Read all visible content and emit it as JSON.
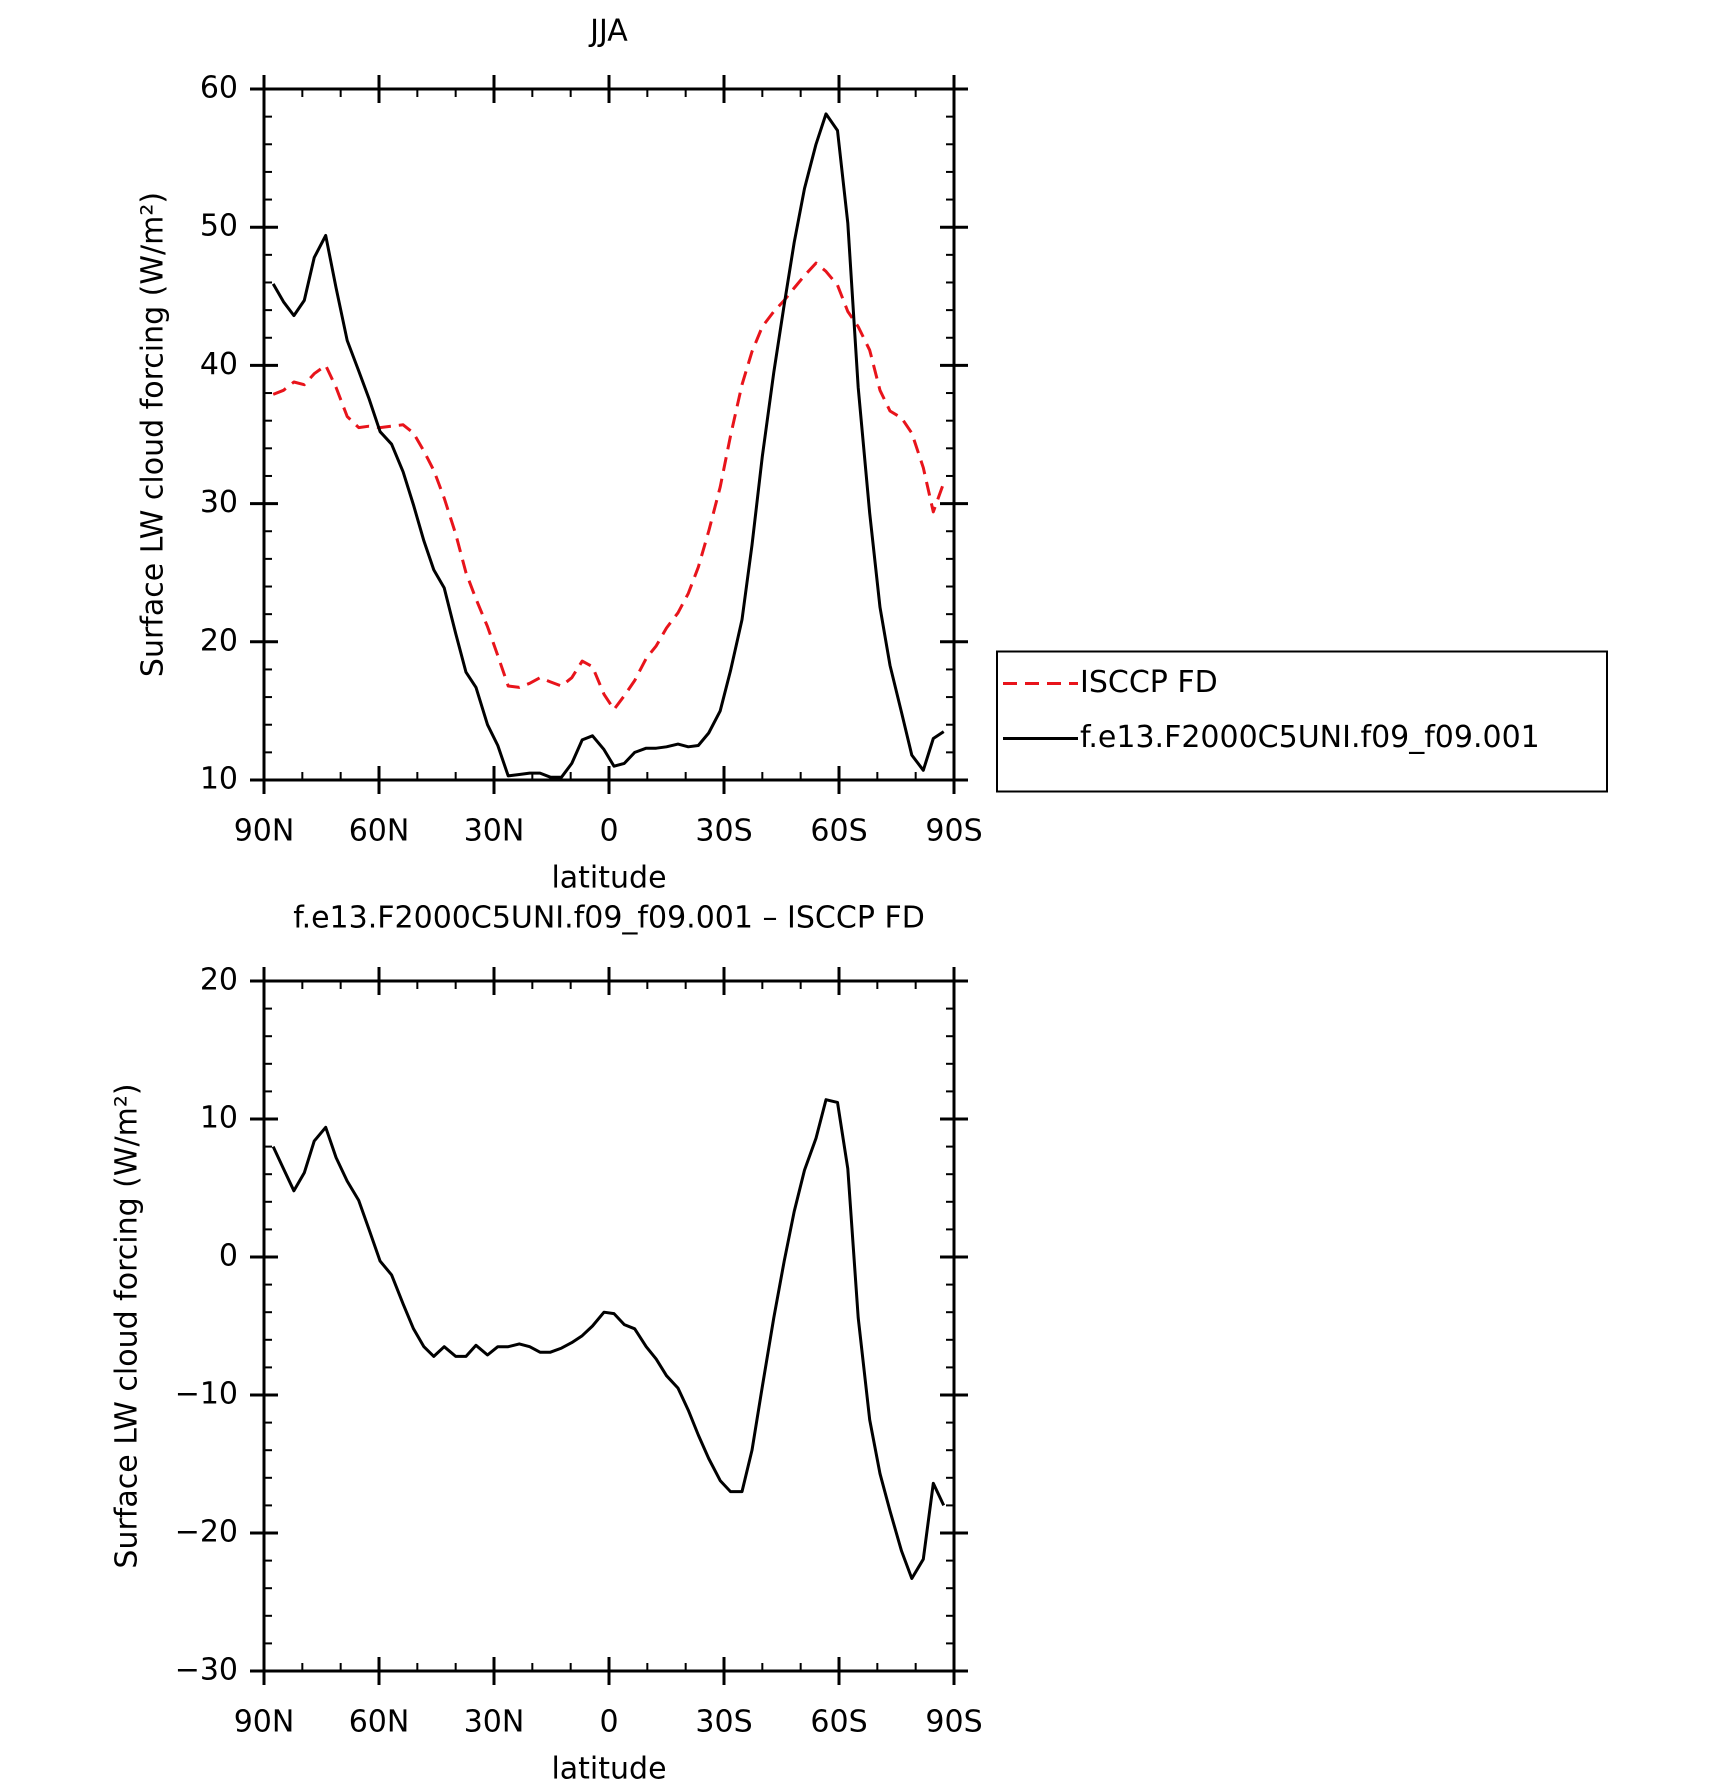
{
  "chart_data": [
    {
      "type": "line",
      "title": "JJA",
      "xlabel": "latitude",
      "ylabel": "Surface LW cloud forcing (W/m²)",
      "x": [
        87.6,
        84.9,
        82.2,
        79.5,
        76.9,
        73.9,
        71.2,
        68.3,
        65.3,
        62.6,
        59.7,
        56.7,
        53.7,
        51.0,
        48.3,
        45.7,
        43.0,
        40.0,
        37.3,
        34.7,
        31.7,
        29.0,
        26.3,
        23.4,
        20.7,
        18.0,
        15.3,
        12.4,
        9.7,
        7.0,
        4.3,
        1.3,
        -1.3,
        -4.0,
        -6.7,
        -9.7,
        -12.3,
        -15.0,
        -18.0,
        -20.7,
        -23.3,
        -26.0,
        -29.0,
        -31.7,
        -34.7,
        -37.3,
        -40.0,
        -43.0,
        -45.7,
        -48.3,
        -51.0,
        -54.0,
        -56.6,
        -59.6,
        -62.3,
        -65.0,
        -68.0,
        -70.7,
        -73.3,
        -76.3,
        -79.0,
        -82.0,
        -84.6,
        -87.3
      ],
      "series": [
        {
          "name": "ISCCP FD",
          "color": "#e8141b",
          "linestyle": "dashed",
          "values": [
            37.9,
            38.2,
            38.8,
            38.6,
            39.4,
            40.0,
            38.4,
            36.3,
            35.5,
            35.6,
            35.5,
            35.6,
            35.7,
            35.1,
            33.8,
            32.4,
            30.4,
            27.8,
            25.0,
            23.1,
            21.1,
            19.0,
            16.8,
            16.7,
            17.0,
            17.4,
            17.1,
            16.8,
            17.4,
            18.6,
            18.2,
            16.2,
            15.1,
            16.1,
            17.2,
            18.8,
            19.7,
            21.0,
            22.1,
            23.5,
            25.4,
            28.0,
            31.2,
            34.9,
            38.6,
            41.0,
            42.8,
            43.9,
            44.7,
            45.6,
            46.5,
            47.4,
            46.8,
            45.8,
            43.9,
            42.8,
            41.1,
            38.2,
            36.7,
            36.2,
            35.1,
            32.6,
            29.4,
            31.5
          ]
        },
        {
          "name": "f.e13.F2000C5UNI.f09_f09.001",
          "color": "#000000",
          "linestyle": "solid",
          "values": [
            45.9,
            44.6,
            43.6,
            44.7,
            47.8,
            49.4,
            45.6,
            41.8,
            39.6,
            37.6,
            35.2,
            34.3,
            32.3,
            29.9,
            27.3,
            25.2,
            23.9,
            20.6,
            17.8,
            16.7,
            14.0,
            12.5,
            10.3,
            10.4,
            10.5,
            10.5,
            10.2,
            10.2,
            11.2,
            12.9,
            13.2,
            12.2,
            11.0,
            11.2,
            12.0,
            12.3,
            12.3,
            12.4,
            12.6,
            12.4,
            12.5,
            13.4,
            15.0,
            17.9,
            21.6,
            27.0,
            33.4,
            39.5,
            44.4,
            48.9,
            52.8,
            56.0,
            58.2,
            57.0,
            50.3,
            38.4,
            29.3,
            22.5,
            18.3,
            14.9,
            11.8,
            10.7,
            13.0,
            13.5
          ]
        }
      ],
      "xlim": [
        90,
        -90
      ],
      "xticks": [
        {
          "value": 90,
          "label": "90N"
        },
        {
          "value": 60,
          "label": "60N"
        },
        {
          "value": 30,
          "label": "30N"
        },
        0,
        {
          "value": -30,
          "label": "30S"
        },
        {
          "value": -60,
          "label": "60S"
        },
        {
          "value": -90,
          "label": "90S"
        }
      ],
      "ylim": [
        10,
        60
      ],
      "yticks": [
        10,
        20,
        30,
        40,
        50,
        60
      ],
      "legend": "right"
    },
    {
      "type": "line",
      "title": "f.e13.F2000C5UNI.f09_f09.001 – ISCCP FD",
      "xlabel": "latitude",
      "ylabel": "Surface LW cloud forcing (W/m²)",
      "x": [
        87.6,
        84.9,
        82.2,
        79.5,
        76.9,
        73.9,
        71.2,
        68.3,
        65.3,
        62.6,
        59.7,
        56.7,
        53.7,
        51.0,
        48.3,
        45.7,
        43.0,
        40.0,
        37.3,
        34.7,
        31.7,
        29.0,
        26.3,
        23.4,
        20.7,
        18.0,
        15.3,
        12.4,
        9.7,
        7.0,
        4.3,
        1.3,
        -1.3,
        -4.0,
        -6.7,
        -9.7,
        -12.3,
        -15.0,
        -18.0,
        -20.7,
        -23.3,
        -26.0,
        -29.0,
        -31.7,
        -34.7,
        -37.3,
        -40.0,
        -43.0,
        -45.7,
        -48.3,
        -51.0,
        -54.0,
        -56.6,
        -59.6,
        -62.3,
        -65.0,
        -68.0,
        -70.7,
        -73.3,
        -76.3,
        -79.0,
        -82.0,
        -84.6,
        -87.3
      ],
      "color": "#000000",
      "values": [
        8.0,
        6.4,
        4.8,
        6.1,
        8.4,
        9.4,
        7.2,
        5.5,
        4.1,
        2.0,
        -0.3,
        -1.3,
        -3.4,
        -5.2,
        -6.5,
        -7.2,
        -6.5,
        -7.2,
        -7.2,
        -6.4,
        -7.1,
        -6.5,
        -6.5,
        -6.3,
        -6.5,
        -6.9,
        -6.9,
        -6.6,
        -6.2,
        -5.7,
        -5.0,
        -4.0,
        -4.1,
        -4.9,
        -5.2,
        -6.5,
        -7.4,
        -8.6,
        -9.5,
        -11.1,
        -12.9,
        -14.6,
        -16.2,
        -17.0,
        -17.0,
        -14.0,
        -9.4,
        -4.4,
        -0.3,
        3.3,
        6.3,
        8.6,
        11.4,
        11.2,
        6.4,
        -4.4,
        -11.8,
        -15.7,
        -18.4,
        -21.3,
        -23.3,
        -21.9,
        -16.4,
        -18.0
      ],
      "xlim": [
        90,
        -90
      ],
      "xticks": [
        {
          "value": 90,
          "label": "90N"
        },
        {
          "value": 60,
          "label": "60N"
        },
        {
          "value": 30,
          "label": "30N"
        },
        0,
        {
          "value": -30,
          "label": "30S"
        },
        {
          "value": -60,
          "label": "60S"
        },
        {
          "value": -90,
          "label": "90S"
        }
      ],
      "ylim": [
        -30,
        20
      ],
      "yticks": [
        {
          "value": -30,
          "label": "−30"
        },
        {
          "value": -20,
          "label": "−20"
        },
        {
          "value": -10,
          "label": "−10"
        },
        0,
        10,
        20
      ]
    }
  ]
}
